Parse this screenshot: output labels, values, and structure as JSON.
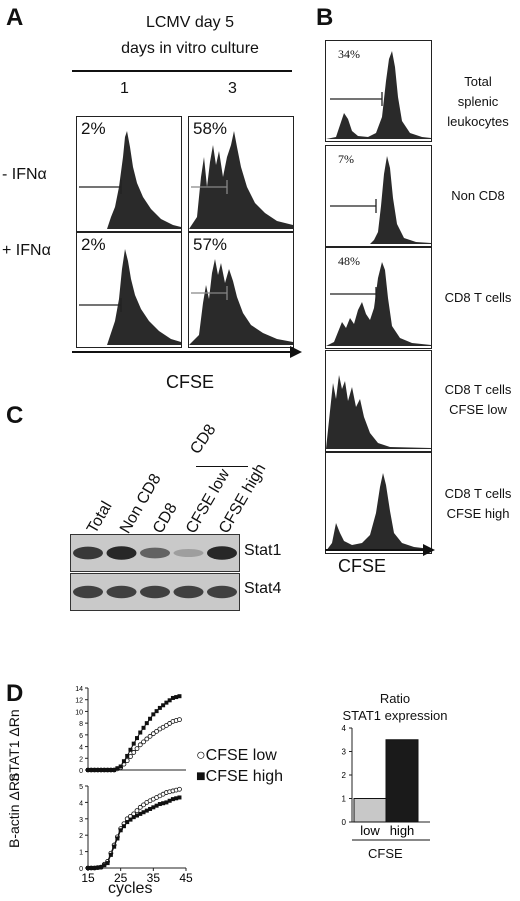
{
  "panelA": {
    "letter": "A",
    "title_line1": "LCMV day 5",
    "title_line2": "days in vitro culture",
    "col1": "1",
    "col3": "3",
    "row_minus": "- IFNα",
    "row_plus": "+ IFNα",
    "pct_tl": "2%",
    "pct_tr": "58%",
    "pct_bl": "2%",
    "pct_br": "57%",
    "xaxis": "CFSE"
  },
  "panelB": {
    "letter": "B",
    "rows": [
      {
        "pct": "34%",
        "label1": "Total",
        "label2": "splenic",
        "label3": "leukocytes"
      },
      {
        "pct": "7%",
        "label1": "Non CD8",
        "label2": "",
        "label3": ""
      },
      {
        "pct": "48%",
        "label1": "CD8 T cells",
        "label2": "",
        "label3": ""
      },
      {
        "pct": "",
        "label1": "CD8 T cells",
        "label2": "CFSE low",
        "label3": ""
      },
      {
        "pct": "",
        "label1": "CD8 T cells",
        "label2": "CFSE high",
        "label3": ""
      }
    ],
    "xaxis": "CFSE"
  },
  "panelC": {
    "letter": "C",
    "group_label": "CD8",
    "lanes": [
      "Total",
      "Non CD8",
      "CD8",
      "CFSE low",
      "CFSE high"
    ],
    "band1": "Stat1",
    "band2": "Stat4",
    "stat1_intensity": [
      0.85,
      0.95,
      0.6,
      0.25,
      0.95
    ],
    "stat4_intensity": [
      0.8,
      0.8,
      0.8,
      0.8,
      0.8
    ]
  },
  "panelD": {
    "letter": "D",
    "legend_low": "CFSE low",
    "legend_high": "CFSE high",
    "ylabel_top": "STAT1 ΔRn",
    "ylabel_bottom": "B-actin ΔRn",
    "xlabel": "cycles",
    "ratio_title1": "Ratio",
    "ratio_title2": "STAT1 expression",
    "ratio_xlabel": "CFSE"
  },
  "chart_data": [
    {
      "type": "line",
      "title": "",
      "ylabel": "STAT1 ΔRn",
      "xlabel": "cycles",
      "ylim": [
        0,
        14
      ],
      "y_ticks": [
        "0",
        "2",
        "4",
        "6",
        "8",
        "10",
        "12",
        "14"
      ],
      "x": [
        15,
        17,
        19,
        21,
        23,
        25,
        27,
        29,
        31,
        33,
        35,
        37,
        39,
        41,
        43
      ],
      "series": [
        {
          "name": "CFSE low",
          "values": [
            0,
            0,
            0,
            0,
            0,
            0.4,
            1.6,
            3.0,
            4.3,
            5.3,
            6.2,
            7.0,
            7.6,
            8.3,
            8.6
          ]
        },
        {
          "name": "CFSE high",
          "values": [
            0,
            0,
            0,
            0,
            0,
            0.6,
            2.4,
            4.5,
            6.4,
            8.0,
            9.5,
            10.6,
            11.5,
            12.3,
            12.6
          ]
        }
      ]
    },
    {
      "type": "line",
      "title": "",
      "ylabel": "B-actin ΔRn",
      "xlabel": "cycles",
      "ylim": [
        0,
        5
      ],
      "y_ticks": [
        "0",
        "1",
        "2",
        "3",
        "4",
        "5"
      ],
      "x_ticks": [
        "15",
        "25",
        "35",
        "45"
      ],
      "x": [
        15,
        17,
        19,
        21,
        23,
        25,
        27,
        29,
        31,
        33,
        35,
        37,
        39,
        41,
        43
      ],
      "series": [
        {
          "name": "CFSE low",
          "values": [
            0,
            0,
            0.05,
            0.4,
            1.4,
            2.4,
            3.0,
            3.3,
            3.7,
            4.0,
            4.2,
            4.4,
            4.6,
            4.7,
            4.8
          ]
        },
        {
          "name": "CFSE high",
          "values": [
            0,
            0,
            0.05,
            0.3,
            1.3,
            2.3,
            2.8,
            3.1,
            3.3,
            3.5,
            3.7,
            3.9,
            4.0,
            4.2,
            4.3
          ]
        }
      ]
    },
    {
      "type": "bar",
      "title": "Ratio STAT1 expression",
      "categories": [
        "low",
        "high"
      ],
      "values": [
        1,
        3.5
      ],
      "colors": [
        "#c8c8c8",
        "#1a1a1a"
      ],
      "y_ticks": [
        "0",
        "1",
        "2",
        "3",
        "4"
      ],
      "ylim": [
        0,
        4
      ],
      "xlabel": "CFSE"
    }
  ]
}
